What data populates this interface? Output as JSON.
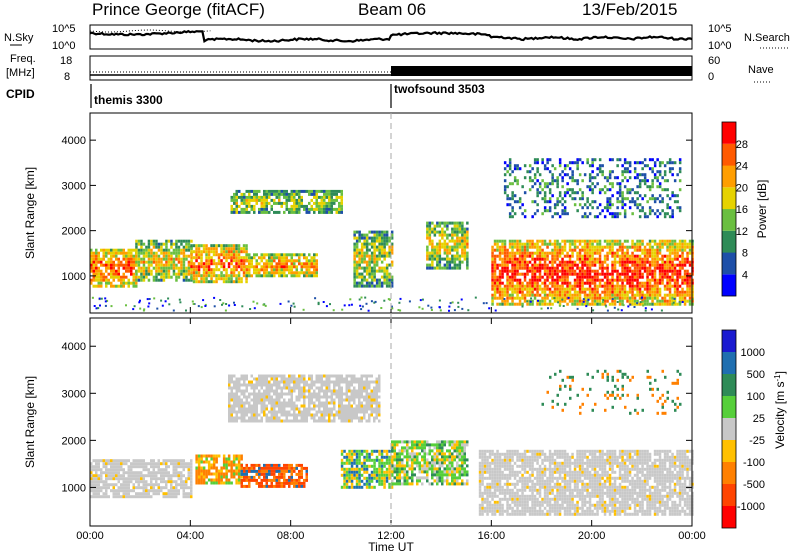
{
  "header": {
    "station": "Prince George (fitACF)",
    "beam": "Beam 06",
    "date": "13/Feb/2015"
  },
  "noise_panel": {
    "left_label": "N.Sky",
    "right_label": "N.Search",
    "left_ticks": [
      "10^5",
      "10^0"
    ],
    "right_ticks": [
      "10^5",
      "10^0"
    ]
  },
  "freq_panel": {
    "left_label_line1": "Freq.",
    "left_label_line2": "[MHz]",
    "right_label": "Nave",
    "left_ticks": [
      "18",
      "8"
    ],
    "right_ticks": [
      "60",
      "0"
    ]
  },
  "cpid": {
    "label": "CPID",
    "programs": [
      {
        "name": "themis 3300",
        "start_hour": 0
      },
      {
        "name": "twofsound 3503",
        "start_hour": 12
      }
    ]
  },
  "chart_data": [
    {
      "type": "heatmap",
      "panel": "power",
      "ylabel": "Slant Range [km]",
      "ylim": [
        180,
        4600
      ],
      "yticks": [
        1000,
        2000,
        3000,
        4000
      ],
      "xlim": [
        0,
        24
      ],
      "colorbar": {
        "label": "Power [dB]",
        "ticks": [
          "4",
          "8",
          "12",
          "16",
          "20",
          "24",
          "28"
        ],
        "colors": [
          "#0000ff",
          "#1d4fa8",
          "#2e8b57",
          "#6abf40",
          "#e6d200",
          "#ff9e00",
          "#ff5a00",
          "#ff0000"
        ]
      },
      "regions": [
        {
          "t0": 0.0,
          "t1": 1.8,
          "r0": 800,
          "r1": 1600,
          "level": 0.82
        },
        {
          "t0": 1.8,
          "t1": 4.0,
          "r0": 900,
          "r1": 1800,
          "level": 0.6
        },
        {
          "t0": 4.0,
          "t1": 6.2,
          "r0": 900,
          "r1": 1700,
          "level": 0.78
        },
        {
          "t0": 6.2,
          "t1": 9.0,
          "r0": 1000,
          "r1": 1500,
          "level": 0.7
        },
        {
          "t0": 5.6,
          "t1": 10.0,
          "r0": 2400,
          "r1": 2900,
          "level": 0.45
        },
        {
          "t0": 10.5,
          "t1": 12.0,
          "r0": 800,
          "r1": 2000,
          "level": 0.5
        },
        {
          "t0": 13.4,
          "t1": 15.0,
          "r0": 1200,
          "r1": 2200,
          "level": 0.55
        },
        {
          "t0": 16.0,
          "t1": 24.0,
          "r0": 400,
          "r1": 1800,
          "level": 0.9
        },
        {
          "t0": 16.5,
          "t1": 23.5,
          "r0": 2300,
          "r1": 3600,
          "level": 0.25
        }
      ]
    },
    {
      "type": "heatmap",
      "panel": "velocity",
      "ylabel": "Slant Range [km]",
      "xlabel": "Time UT",
      "ylim": [
        180,
        4600
      ],
      "yticks": [
        1000,
        2000,
        3000,
        4000
      ],
      "xlim": [
        0,
        24
      ],
      "xticks": [
        "00:00",
        "04:00",
        "08:00",
        "12:00",
        "16:00",
        "20:00",
        "00:00"
      ],
      "colorbar": {
        "label_main": "Velocity",
        "label_unit": "[m s",
        "label_sup": "-1",
        "label_close": "]",
        "ticks": [
          "1000",
          "500",
          "100",
          "25",
          "-25",
          "-100",
          "-500",
          "-1000"
        ],
        "colors": [
          "#1a1ad0",
          "#1f6fb0",
          "#2e8b57",
          "#56cf3a",
          "#c8c8c8",
          "#ffc000",
          "#ff8000",
          "#ff4400",
          "#ff0000"
        ]
      },
      "regions": [
        {
          "t0": 0.0,
          "t1": 4.0,
          "r0": 800,
          "r1": 1600,
          "class": "ground"
        },
        {
          "t0": 4.2,
          "t1": 6.0,
          "r0": 1100,
          "r1": 1700,
          "class": "neg_mid"
        },
        {
          "t0": 6.0,
          "t1": 8.6,
          "r0": 1000,
          "r1": 1500,
          "class": "neg_strong"
        },
        {
          "t0": 5.5,
          "t1": 11.5,
          "r0": 2400,
          "r1": 3400,
          "class": "ground"
        },
        {
          "t0": 10.0,
          "t1": 12.0,
          "r0": 1000,
          "r1": 1800,
          "class": "pos_mid"
        },
        {
          "t0": 12.0,
          "t1": 15.0,
          "r0": 1100,
          "r1": 2000,
          "class": "mixed"
        },
        {
          "t0": 15.5,
          "t1": 24.0,
          "r0": 400,
          "r1": 1800,
          "class": "ground"
        },
        {
          "t0": 18.0,
          "t1": 23.5,
          "r0": 2600,
          "r1": 3500,
          "class": "neg_sparse"
        }
      ]
    }
  ]
}
